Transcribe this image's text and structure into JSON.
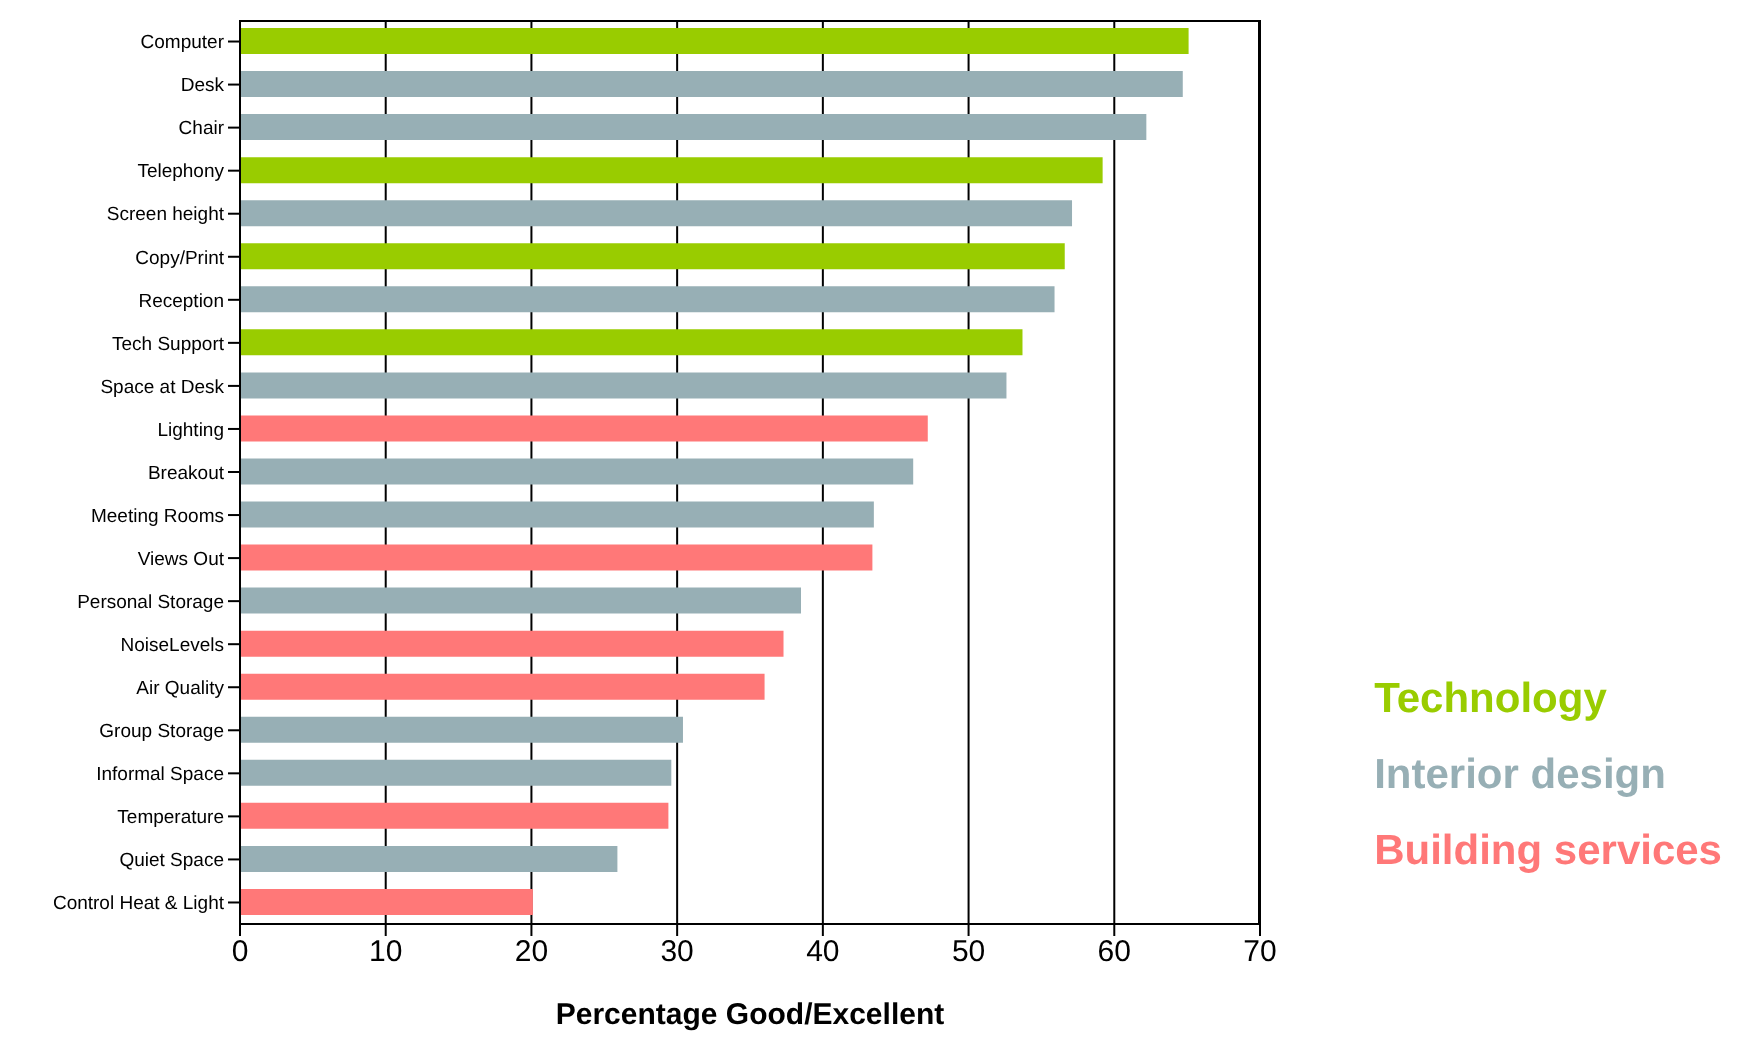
{
  "chart_data": {
    "type": "bar",
    "orientation": "horizontal",
    "stacked": true,
    "xlabel": "Percentage Good/Excellent",
    "categories": [
      "Computer",
      "Desk",
      "Chair",
      "Telephony",
      "Screen height",
      "Copy/Print",
      "Reception",
      "Tech Support",
      "Space at Desk",
      "Lighting",
      "Breakout",
      "Meeting Rooms",
      "Views Out",
      "Personal Storage",
      "NoiseLevels",
      "Air Quality",
      "Group Storage",
      "Informal Space",
      "Temperature",
      "Quiet Space",
      "Control Heat & Light"
    ],
    "series": [
      {
        "name": "Technology",
        "color": "#99cc00",
        "values": [
          65.1,
          null,
          null,
          59.2,
          null,
          56.6,
          null,
          53.7,
          null,
          null,
          null,
          null,
          null,
          null,
          null,
          null,
          null,
          null,
          null,
          null,
          null
        ]
      },
      {
        "name": "Interior design",
        "color": "#97afb5",
        "values": [
          null,
          64.7,
          62.2,
          null,
          57.1,
          null,
          55.9,
          null,
          52.6,
          null,
          46.2,
          43.5,
          null,
          38.5,
          null,
          null,
          30.4,
          29.6,
          null,
          25.9,
          null
        ]
      },
      {
        "name": "Building services",
        "color": "#ff7878",
        "values": [
          null,
          null,
          null,
          null,
          null,
          null,
          null,
          null,
          null,
          47.2,
          null,
          null,
          43.4,
          null,
          37.3,
          36.0,
          null,
          null,
          29.4,
          null,
          20.1
        ]
      }
    ],
    "xlim": [
      0,
      70
    ],
    "xticks": [
      0,
      10,
      20,
      30,
      40,
      50,
      60,
      70
    ],
    "grid": "x",
    "legend": "right"
  }
}
